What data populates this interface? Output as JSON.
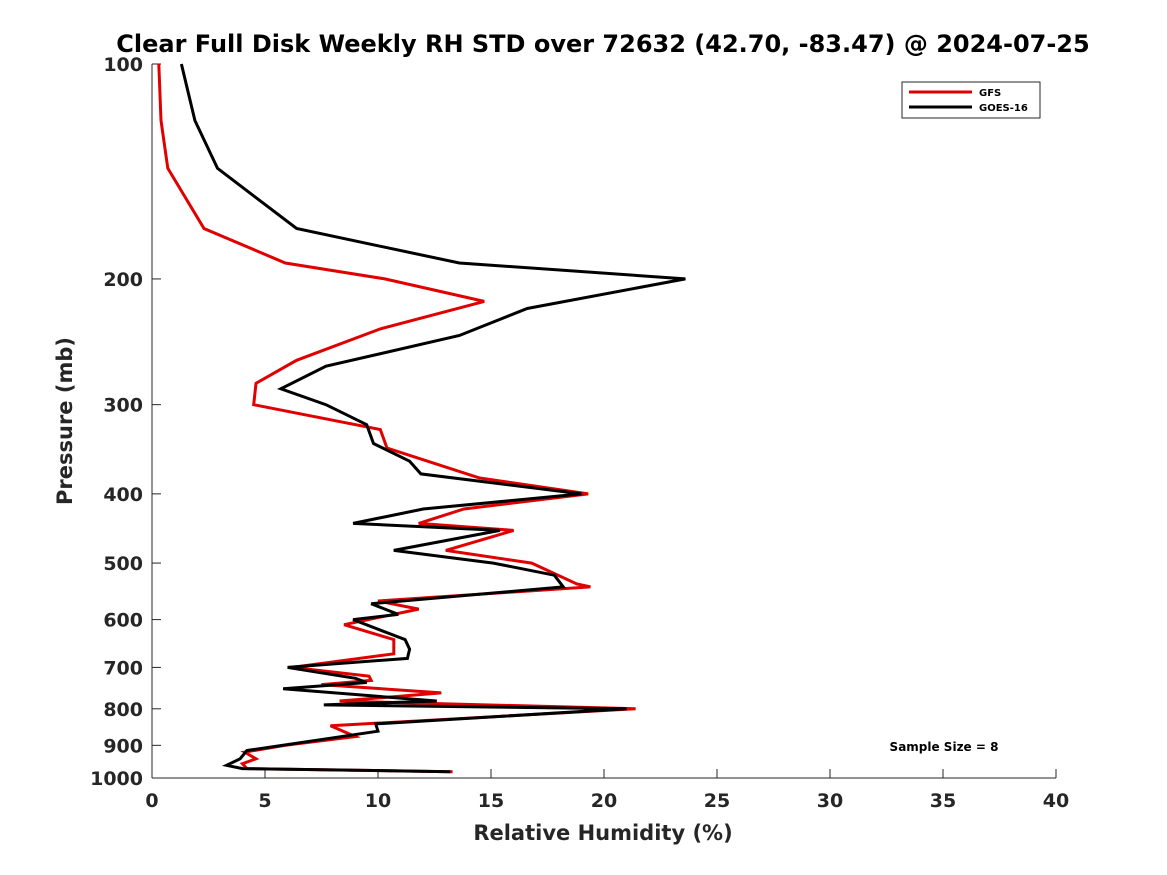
{
  "chart_data": {
    "type": "line",
    "title": "Clear Full Disk Weekly RH STD over 72632 (42.70, -83.47) @ 2024-07-25",
    "xlabel": "Relative Humidity (%)",
    "ylabel": "Pressure (mb)",
    "xlim": [
      0,
      40
    ],
    "ylim": [
      100,
      1000
    ],
    "yscale": "log",
    "y_reversed": true,
    "xticks": [
      0,
      5,
      10,
      15,
      20,
      25,
      30,
      35,
      40
    ],
    "yticks": [
      100,
      200,
      300,
      400,
      500,
      600,
      700,
      800,
      900,
      1000
    ],
    "grid": false,
    "legend_location": "top-right",
    "annotation": "Sample Size = 8",
    "series": [
      {
        "name": "GFS",
        "color": "#e00000",
        "points": [
          [
            0.3,
            100
          ],
          [
            0.4,
            120
          ],
          [
            0.7,
            140
          ],
          [
            2.3,
            170
          ],
          [
            5.9,
            190
          ],
          [
            10.3,
            200
          ],
          [
            14.7,
            215
          ],
          [
            10.1,
            235
          ],
          [
            6.4,
            260
          ],
          [
            4.6,
            280
          ],
          [
            4.5,
            300
          ],
          [
            10.1,
            325
          ],
          [
            10.4,
            345
          ],
          [
            14.5,
            380
          ],
          [
            19.3,
            400
          ],
          [
            13.8,
            420
          ],
          [
            11.8,
            440
          ],
          [
            16.0,
            450
          ],
          [
            13.0,
            480
          ],
          [
            16.8,
            500
          ],
          [
            18.8,
            535
          ],
          [
            19.4,
            540
          ],
          [
            10.0,
            565
          ],
          [
            11.8,
            580
          ],
          [
            8.5,
            610
          ],
          [
            10.7,
            640
          ],
          [
            10.7,
            670
          ],
          [
            6.2,
            700
          ],
          [
            9.6,
            720
          ],
          [
            9.7,
            730
          ],
          [
            7.5,
            740
          ],
          [
            12.8,
            760
          ],
          [
            8.3,
            780
          ],
          [
            21.4,
            800
          ],
          [
            7.9,
            845
          ],
          [
            9.0,
            875
          ],
          [
            5.9,
            900
          ],
          [
            4.1,
            920
          ],
          [
            4.6,
            940
          ],
          [
            4.0,
            955
          ],
          [
            4.2,
            970
          ],
          [
            13.3,
            980
          ]
        ]
      },
      {
        "name": "GOES-16",
        "color": "#000000",
        "points": [
          [
            1.3,
            100
          ],
          [
            1.9,
            120
          ],
          [
            2.9,
            140
          ],
          [
            6.4,
            170
          ],
          [
            13.6,
            190
          ],
          [
            23.6,
            200
          ],
          [
            16.6,
            220
          ],
          [
            13.6,
            240
          ],
          [
            7.7,
            265
          ],
          [
            5.7,
            285
          ],
          [
            7.7,
            300
          ],
          [
            9.5,
            320
          ],
          [
            9.8,
            340
          ],
          [
            11.4,
            360
          ],
          [
            11.9,
            375
          ],
          [
            19.0,
            400
          ],
          [
            12.0,
            420
          ],
          [
            8.9,
            440
          ],
          [
            15.4,
            450
          ],
          [
            10.7,
            480
          ],
          [
            15.1,
            500
          ],
          [
            17.8,
            520
          ],
          [
            18.2,
            540
          ],
          [
            9.7,
            570
          ],
          [
            10.9,
            590
          ],
          [
            8.9,
            600
          ],
          [
            11.2,
            640
          ],
          [
            11.4,
            660
          ],
          [
            11.3,
            680
          ],
          [
            6.0,
            700
          ],
          [
            9.0,
            725
          ],
          [
            9.5,
            735
          ],
          [
            5.8,
            750
          ],
          [
            12.6,
            780
          ],
          [
            7.6,
            790
          ],
          [
            21.0,
            800
          ],
          [
            9.9,
            840
          ],
          [
            10.0,
            860
          ],
          [
            4.2,
            915
          ],
          [
            3.9,
            940
          ],
          [
            3.3,
            960
          ],
          [
            4.0,
            970
          ],
          [
            13.2,
            980
          ]
        ]
      }
    ]
  }
}
